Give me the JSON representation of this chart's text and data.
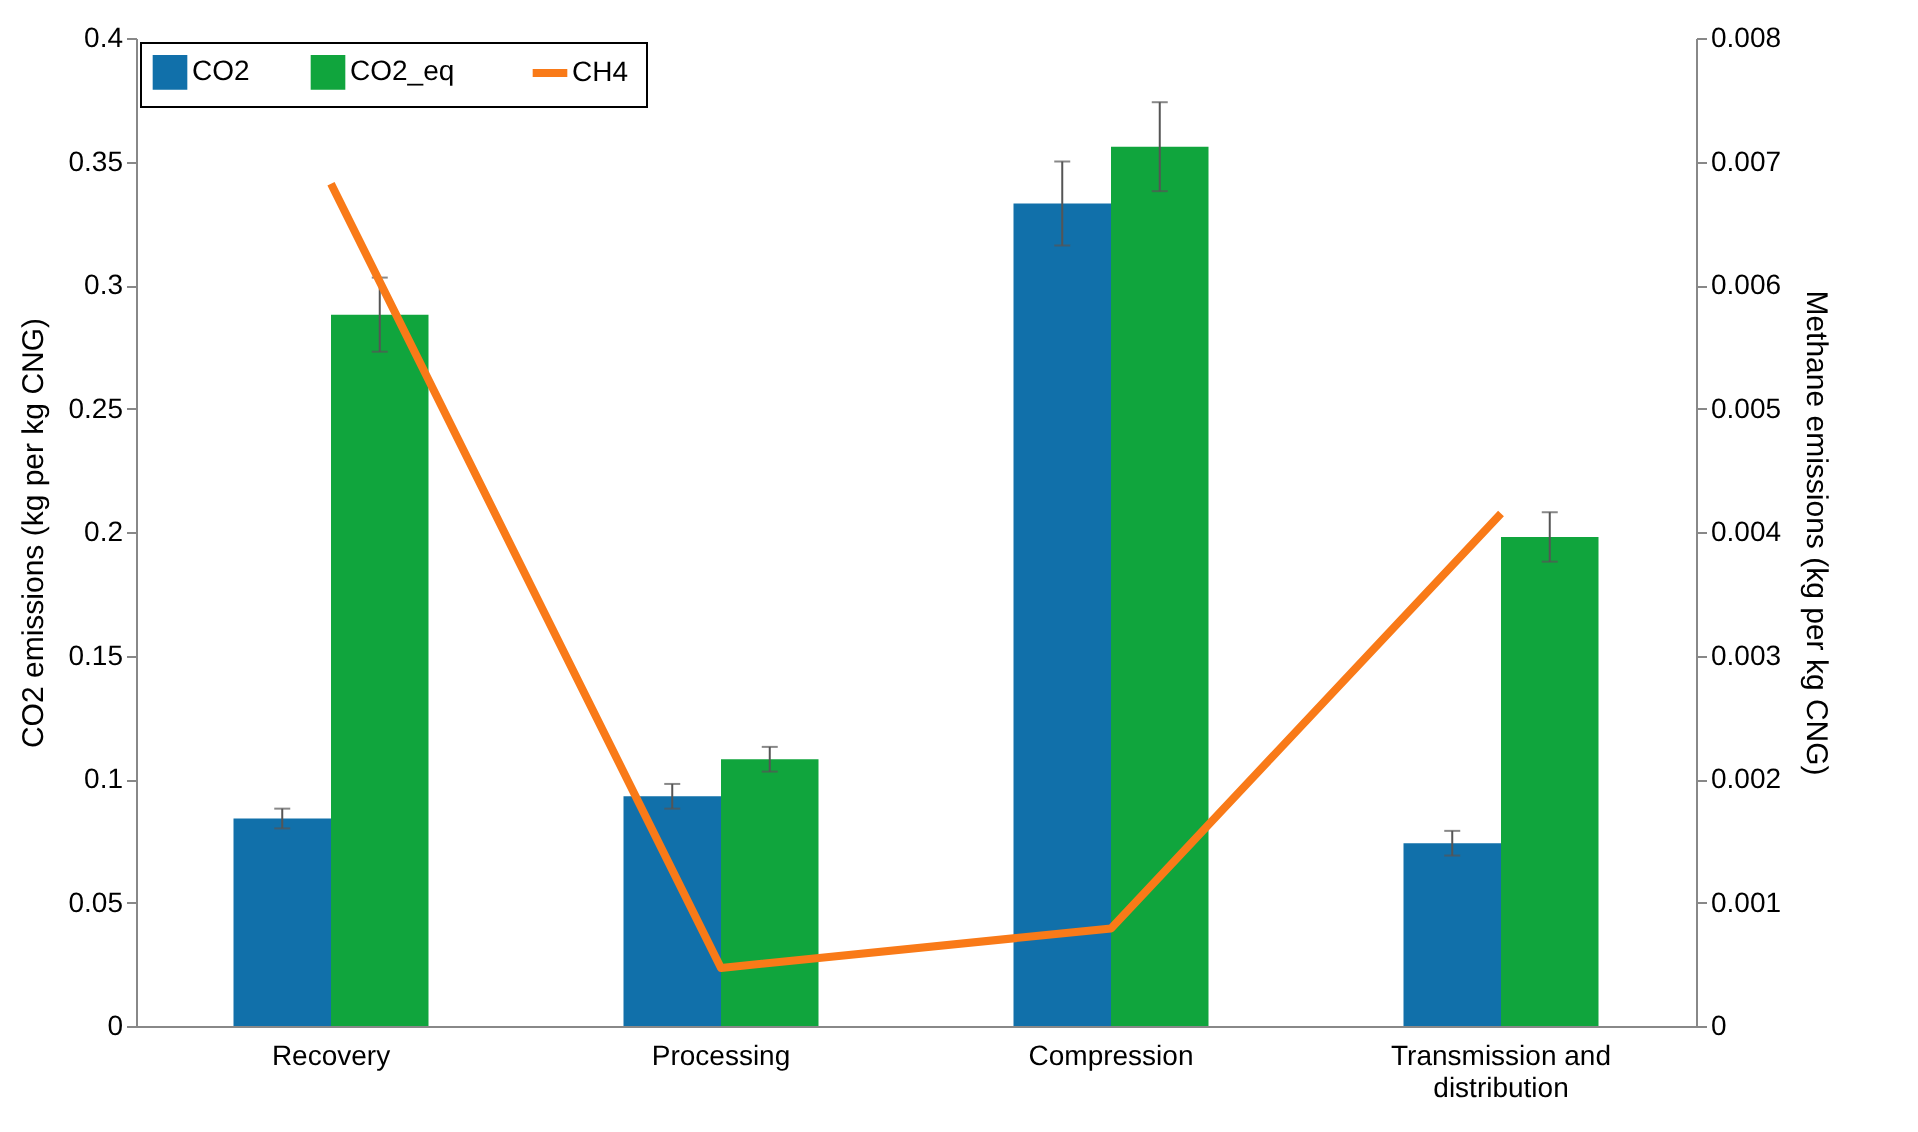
{
  "chart_data": {
    "type": "bar",
    "ylabel": "CO2 emissions (kg per kg CNG)",
    "y2label": "Methane emissions (kg per kg CNG)",
    "categories": [
      "Recovery",
      "Processing",
      "Compression",
      "Transmission and distribution"
    ],
    "series": [
      {
        "name": "CO2",
        "color": "#1170aa",
        "values": [
          0.084,
          0.093,
          0.333,
          0.074
        ],
        "errors": [
          0.004,
          0.005,
          0.017,
          0.005
        ]
      },
      {
        "name": "CO2_eq",
        "color": "#10a53d",
        "values": [
          0.288,
          0.108,
          0.356,
          0.198
        ],
        "errors": [
          0.015,
          0.005,
          0.018,
          0.01
        ]
      },
      {
        "name": "CH4",
        "type": "line",
        "axis": "y2",
        "color": "#f97a18",
        "values": [
          0.00682,
          0.00047,
          0.00079,
          0.00415
        ]
      }
    ],
    "ylim": [
      0,
      0.4
    ],
    "yticks": [
      0,
      0.05,
      0.1,
      0.15,
      0.2,
      0.25,
      0.3,
      0.35,
      0.4
    ],
    "y2lim": [
      0,
      0.008
    ],
    "y2ticks": [
      0,
      0.001,
      0.002,
      0.003,
      0.004,
      0.005,
      0.006,
      0.007,
      0.008
    ],
    "legend": "top left",
    "grid": false
  }
}
